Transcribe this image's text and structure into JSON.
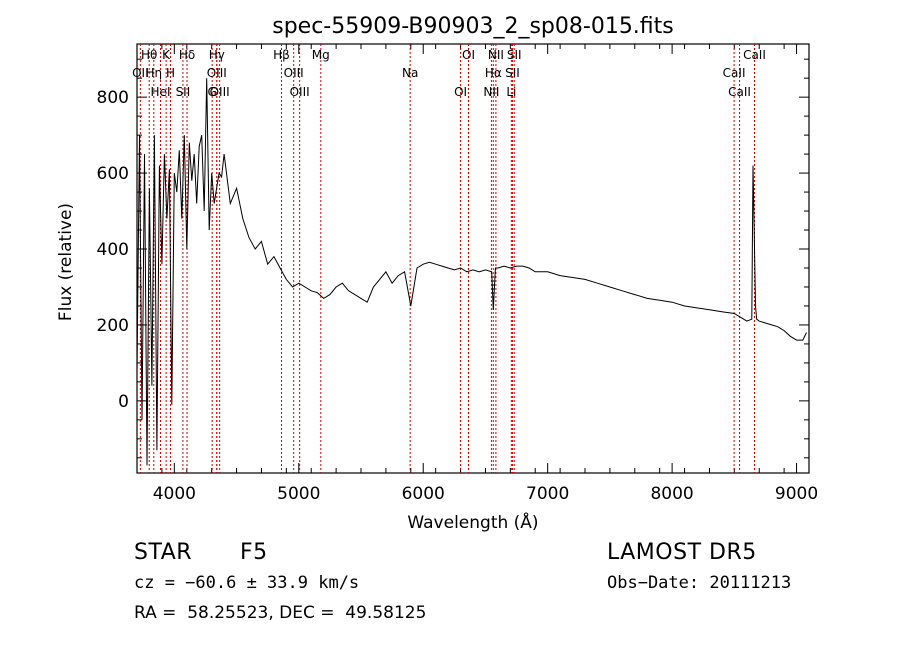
{
  "chart_data": {
    "type": "line",
    "title": "spec-55909-B90903_2_sp08-015.fits",
    "xlabel": "Wavelength (Å)",
    "ylabel": "Flux (relative)",
    "xlim": [
      3700,
      9100
    ],
    "ylim": [
      -190,
      940
    ],
    "x_ticks": [
      4000,
      5000,
      6000,
      7000,
      8000,
      9000
    ],
    "y_ticks": [
      0,
      200,
      400,
      600,
      800
    ],
    "series": [
      {
        "x": [
          3700,
          3720,
          3740,
          3760,
          3780,
          3800,
          3820,
          3840,
          3860,
          3880,
          3900,
          3920,
          3940,
          3960,
          3980,
          4000,
          4020,
          4040,
          4060,
          4080,
          4100,
          4120,
          4140,
          4160,
          4180,
          4200,
          4220,
          4240,
          4260,
          4280,
          4300,
          4320,
          4340,
          4360,
          4380,
          4400,
          4450,
          4500,
          4550,
          4600,
          4650,
          4700,
          4750,
          4800,
          4850,
          4900,
          4950,
          5000,
          5050,
          5100,
          5150,
          5200,
          5250,
          5300,
          5350,
          5400,
          5450,
          5500,
          5550,
          5600,
          5650,
          5700,
          5750,
          5800,
          5850,
          5900,
          5950,
          6000,
          6050,
          6100,
          6150,
          6200,
          6250,
          6300,
          6350,
          6400,
          6450,
          6500,
          6550,
          6563,
          6580,
          6600,
          6650,
          6700,
          6750,
          6800,
          6850,
          6900,
          6950,
          7000,
          7100,
          7200,
          7300,
          7400,
          7500,
          7600,
          7700,
          7800,
          7900,
          8000,
          8100,
          8200,
          8300,
          8400,
          8500,
          8550,
          8600,
          8640,
          8650,
          8660,
          8670,
          8680,
          8700,
          8750,
          8800,
          8850,
          8900,
          8950,
          9000,
          9050,
          9080
        ],
        "y": [
          80,
          700,
          -50,
          650,
          -170,
          560,
          40,
          700,
          -130,
          620,
          360,
          650,
          480,
          610,
          -10,
          600,
          550,
          660,
          480,
          700,
          400,
          680,
          580,
          650,
          520,
          670,
          700,
          500,
          850,
          450,
          600,
          520,
          560,
          600,
          590,
          650,
          520,
          560,
          480,
          430,
          400,
          420,
          360,
          380,
          350,
          320,
          300,
          310,
          300,
          290,
          285,
          270,
          280,
          300,
          310,
          290,
          280,
          270,
          260,
          300,
          320,
          340,
          310,
          330,
          340,
          250,
          350,
          360,
          365,
          360,
          355,
          350,
          345,
          350,
          340,
          345,
          340,
          345,
          340,
          240,
          350,
          350,
          355,
          350,
          355,
          355,
          350,
          340,
          340,
          340,
          330,
          325,
          320,
          310,
          300,
          290,
          280,
          270,
          265,
          260,
          250,
          245,
          240,
          235,
          230,
          220,
          210,
          215,
          620,
          450,
          250,
          215,
          210,
          205,
          200,
          195,
          185,
          170,
          160,
          160,
          180
        ]
      }
    ],
    "lines": [
      {
        "label": "Hθ",
        "x": 3798
      },
      {
        "label": "Hη",
        "x": 3835
      },
      {
        "label": "HeI",
        "x": 3889
      },
      {
        "label": "K",
        "x": 3934
      },
      {
        "label": "H",
        "x": 3969
      },
      {
        "label": "SII",
        "x": 4069
      },
      {
        "label": "Hδ",
        "x": 4102
      },
      {
        "label": "OIII",
        "x": 4341
      },
      {
        "label": "G",
        "x": 4304
      },
      {
        "label": "Hγ",
        "x": 4341
      },
      {
        "label": "OII",
        "x": 3727
      },
      {
        "label": "OIII",
        "x": 4364
      },
      {
        "label": "Hβ",
        "x": 4861
      },
      {
        "label": "OIII",
        "x": 4959
      },
      {
        "label": "OIII",
        "x": 5007
      },
      {
        "label": "Mg",
        "x": 5177
      },
      {
        "label": "Na",
        "x": 5895
      },
      {
        "label": "OI",
        "x": 6300
      },
      {
        "label": "OI",
        "x": 6364
      },
      {
        "label": "Hα",
        "x": 6563
      },
      {
        "label": "NII",
        "x": 6548
      },
      {
        "label": "NII",
        "x": 6584
      },
      {
        "label": "SII",
        "x": 6717
      },
      {
        "label": "Li",
        "x": 6708
      },
      {
        "label": "SII",
        "x": 6731
      },
      {
        "label": "CaII",
        "x": 8498
      },
      {
        "label": "CaII",
        "x": 8542
      },
      {
        "label": "CaII",
        "x": 8662
      }
    ],
    "line_color": "#000000",
    "marker_color": "#cc0000"
  },
  "footer": {
    "object_class": "STAR",
    "subclass": "F5",
    "survey": "LAMOST DR5",
    "cz": "cz = −60.6 ± 33.9 km/s",
    "obs_date": "Obs−Date: 20111213",
    "coords": "RA =  58.25523, DEC =  49.58125"
  }
}
